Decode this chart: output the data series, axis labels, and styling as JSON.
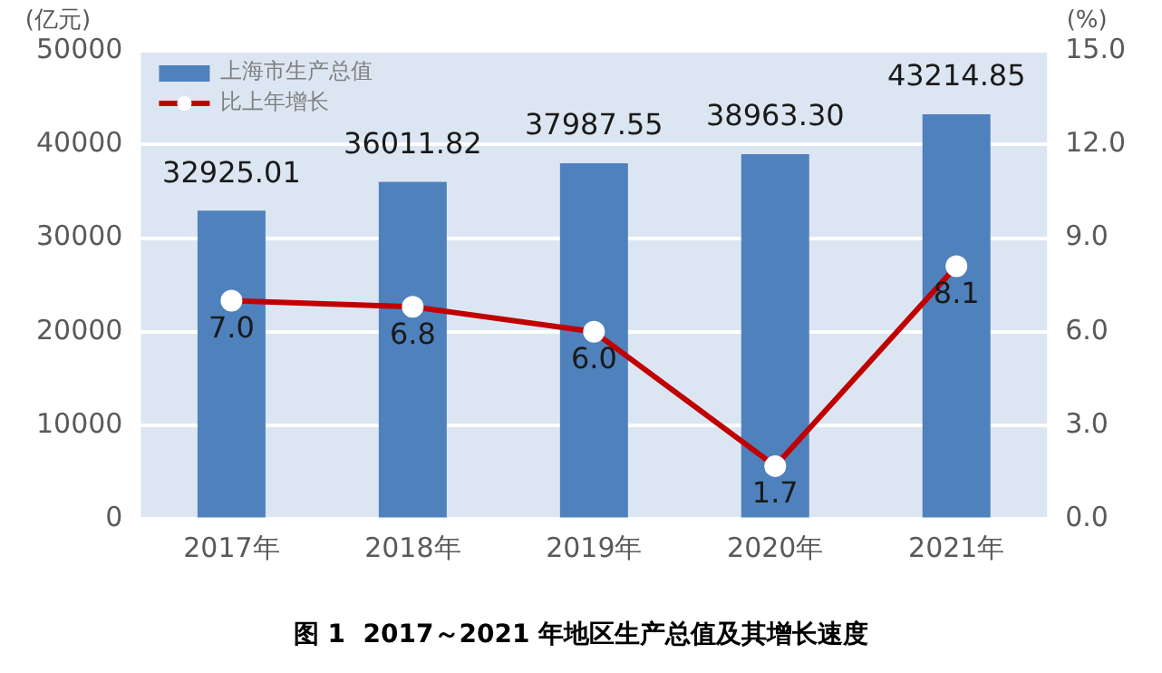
{
  "chart_data": {
    "type": "bar",
    "title": "图 1  2017～2021 年地区生产总值及其增长速度",
    "categories": [
      "2017年",
      "2018年",
      "2019年",
      "2020年",
      "2021年"
    ],
    "series": [
      {
        "name": "上海市生产总值",
        "color": "#4f81bd",
        "values": [
          32925.01,
          36011.82,
          37987.55,
          38963.3,
          43214.85
        ],
        "value_labels": [
          "32925.01",
          "36011.82",
          "37987.55",
          "38963.30",
          "43214.85"
        ]
      },
      {
        "name": "比上年增长",
        "type": "line",
        "axis": "y2",
        "color": "#c00000",
        "values": [
          7.0,
          6.8,
          6.0,
          1.7,
          8.1
        ],
        "value_labels": [
          "7.0",
          "6.8",
          "6.0",
          "1.7",
          "8.1"
        ]
      }
    ],
    "ylabel": "(亿元)",
    "y2label": "(%)",
    "ylim": [
      0,
      50000
    ],
    "yticks": [
      0,
      10000,
      20000,
      30000,
      40000,
      50000
    ],
    "y2lim": [
      0,
      15
    ],
    "y2ticks": [
      {
        "value": 0,
        "label": "0.0"
      },
      {
        "value": 3,
        "label": "3.0"
      },
      {
        "value": 6,
        "label": "6.0"
      },
      {
        "value": 9,
        "label": "9.0"
      },
      {
        "value": 12,
        "label": "12.0"
      },
      {
        "value": 15,
        "label": "15.0"
      }
    ],
    "grid": "y",
    "legend": "top left",
    "marker": "circle"
  }
}
